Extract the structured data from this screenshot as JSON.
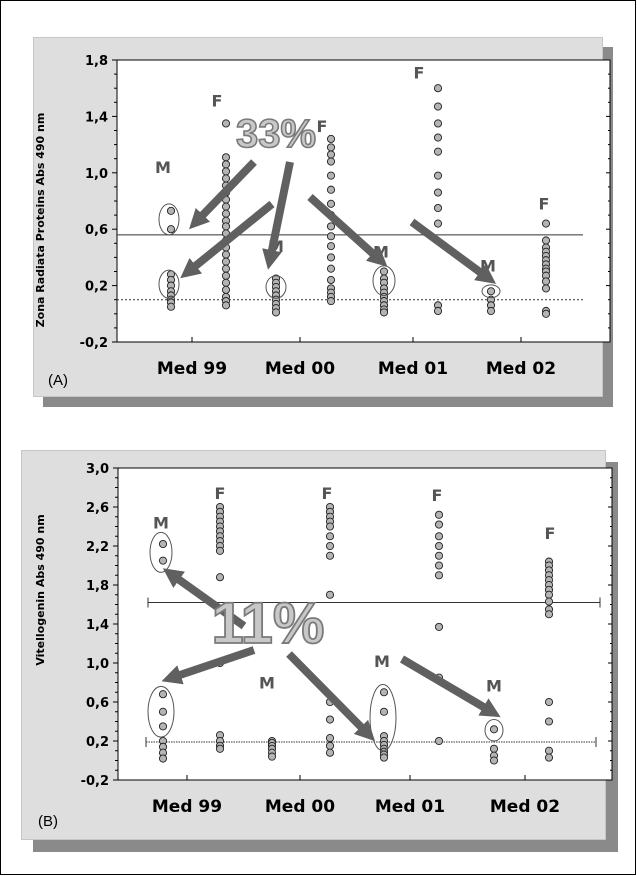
{
  "chart_data": [
    {
      "type": "scatter",
      "panel_label": "(A)",
      "ylabel": "Zona Radiata Proteins Abs 490 nm",
      "ylim": [
        -0.2,
        1.8
      ],
      "yticks": [
        "-0,2",
        "0,2",
        "0,6",
        "1,0",
        "1,4",
        "1,8"
      ],
      "categories": [
        "Med 99",
        "Med 00",
        "Med 01",
        "Med 02"
      ],
      "threshold_high": 0.56,
      "threshold_low": 0.1,
      "annotation": "33%",
      "series": [
        {
          "name": "M",
          "values": [
            [
              0.73,
              0.6,
              0.28,
              0.24,
              0.2,
              0.16,
              0.13,
              0.1,
              0.08,
              0.05
            ],
            [
              0.25,
              0.22,
              0.19,
              0.16,
              0.13,
              0.1,
              0.07,
              0.04,
              0.01
            ],
            [
              0.3,
              0.25,
              0.22,
              0.18,
              0.15,
              0.12,
              0.09,
              0.06,
              0.03,
              0.01
            ],
            [
              0.16,
              0.1,
              0.06,
              0.02
            ]
          ]
        },
        {
          "name": "F",
          "values": [
            [
              1.35,
              1.11,
              1.06,
              1.01,
              0.96,
              0.91,
              0.86,
              0.81,
              0.76,
              0.71,
              0.66,
              0.62,
              0.57,
              0.52,
              0.47,
              0.42,
              0.37,
              0.32,
              0.27,
              0.22,
              0.17,
              0.12,
              0.09,
              0.06
            ],
            [
              1.24,
              1.18,
              1.13,
              1.08,
              0.98,
              0.88,
              0.78,
              0.7,
              0.62,
              0.55,
              0.48,
              0.4,
              0.32,
              0.24,
              0.18,
              0.15,
              0.12,
              0.09
            ],
            [
              1.6,
              1.47,
              1.35,
              1.25,
              1.15,
              0.98,
              0.86,
              0.75,
              0.64,
              0.06,
              0.02
            ],
            [
              0.64,
              0.52,
              0.47,
              0.44,
              0.41,
              0.38,
              0.35,
              0.32,
              0.3,
              0.27,
              0.23,
              0.18,
              0.02,
              0.0
            ]
          ]
        }
      ]
    },
    {
      "type": "scatter",
      "panel_label": "(B)",
      "ylabel": "Vitellogenin Abs 490 nm",
      "ylim": [
        -0.2,
        3.0
      ],
      "yticks": [
        "-0,2",
        "0,2",
        "0,6",
        "1,0",
        "1,4",
        "1,8",
        "2,2",
        "2,6",
        "3,0"
      ],
      "categories": [
        "Med 99",
        "Med 00",
        "Med 01",
        "Med 02"
      ],
      "threshold_high": 1.62,
      "threshold_low": 0.19,
      "annotation": "11%",
      "series": [
        {
          "name": "M",
          "values": [
            [
              2.22,
              2.05,
              0.68,
              0.5,
              0.35,
              0.2,
              0.14,
              0.08,
              0.02
            ],
            [
              0.2,
              0.18,
              0.15,
              0.12,
              0.08,
              0.04
            ],
            [
              0.7,
              0.5,
              0.25,
              0.2,
              0.16,
              0.12,
              0.09,
              0.06,
              0.03
            ],
            [
              0.32,
              0.12,
              0.05,
              0.0
            ]
          ]
        },
        {
          "name": "F",
          "values": [
            [
              2.6,
              2.55,
              2.5,
              2.45,
              2.4,
              2.35,
              2.3,
              2.25,
              2.2,
              2.15,
              1.88,
              1.0,
              0.26,
              0.2,
              0.15,
              0.12
            ],
            [
              2.6,
              2.55,
              2.5,
              2.45,
              2.4,
              2.3,
              2.2,
              2.1,
              1.7,
              0.6,
              0.42,
              0.23,
              0.15,
              0.08
            ],
            [
              2.52,
              2.42,
              2.3,
              2.2,
              2.1,
              2.0,
              1.9,
              1.37,
              0.85,
              0.2
            ],
            [
              2.04,
              2.0,
              1.95,
              1.9,
              1.85,
              1.8,
              1.75,
              1.7,
              1.63,
              1.55,
              1.5,
              0.6,
              0.4,
              0.1,
              0.03
            ]
          ]
        }
      ]
    }
  ]
}
